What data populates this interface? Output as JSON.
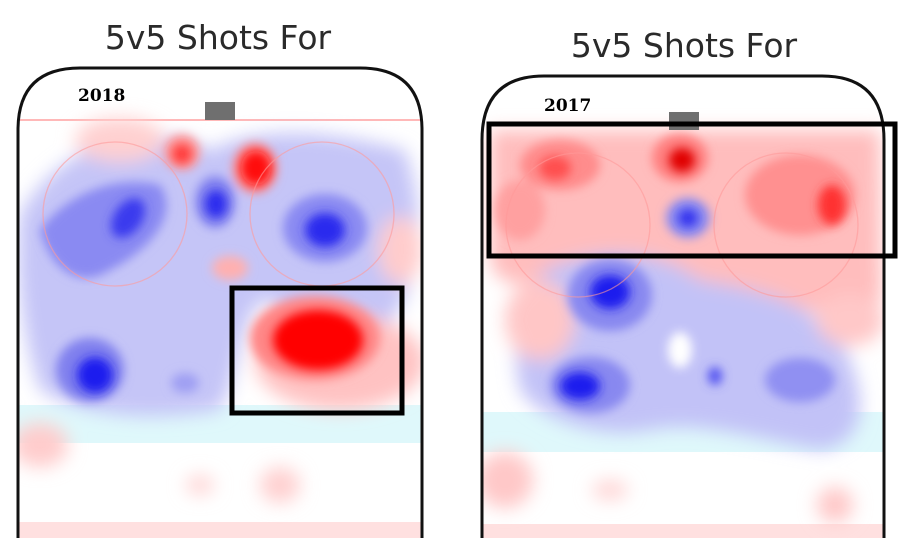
{
  "chart_data": [
    {
      "type": "heatmap",
      "title": "5v5 Shots For",
      "season_label": "2018",
      "colors": {
        "above": "#ff0000",
        "below": "#0000ee",
        "neutral": "#ffffff"
      },
      "highlight_box": "high slot, right side"
    },
    {
      "type": "heatmap",
      "title": "5v5 Shots For",
      "season_label": "2017",
      "colors": {
        "above": "#ff0000",
        "below": "#0000ee",
        "neutral": "#ffffff"
      },
      "highlight_box": "net-front and top of zone"
    }
  ]
}
